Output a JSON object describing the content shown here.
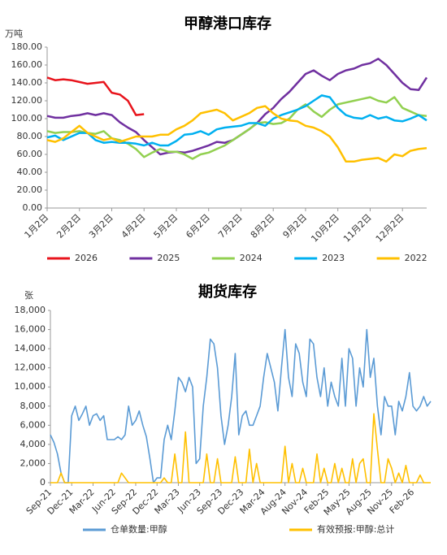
{
  "chart_data": [
    {
      "type": "line",
      "title": "甲醇港口库存",
      "y_label": "万吨",
      "categories": [
        "1月2日",
        null,
        null,
        null,
        "2月2日",
        null,
        null,
        null,
        "3月2日",
        null,
        null,
        null,
        "4月2日",
        null,
        null,
        null,
        "5月2日",
        null,
        null,
        null,
        "6月2日",
        null,
        null,
        null,
        "7月2日",
        null,
        null,
        null,
        "8月2日",
        null,
        null,
        null,
        "9月2日",
        null,
        null,
        null,
        "10月2日",
        null,
        null,
        null,
        "11月2日",
        null,
        null,
        null,
        "12月2日",
        null,
        null,
        null
      ],
      "ylim": [
        0,
        180
      ],
      "yticks": [
        {
          "value": 0,
          "label": "0.00"
        },
        {
          "value": 20,
          "label": "20.00"
        },
        {
          "value": 40,
          "label": "40.00"
        },
        {
          "value": 60,
          "label": "60.00"
        },
        {
          "value": 80,
          "label": "80.00"
        },
        {
          "value": 100,
          "label": "100.00"
        },
        {
          "value": 120,
          "label": "120.00"
        },
        {
          "value": 140,
          "label": "140.00"
        },
        {
          "value": 160,
          "label": "160.00"
        },
        {
          "value": 180,
          "label": "180.00"
        }
      ],
      "grid": false,
      "legend": "bottom",
      "series": [
        {
          "name": "2026",
          "color": "#e8141c",
          "values": [
            146,
            143,
            144,
            143,
            141,
            139,
            140,
            141,
            129,
            127,
            120,
            104,
            105,
            null,
            null,
            null,
            null,
            null,
            null,
            null,
            null,
            null,
            null,
            null,
            null,
            null,
            null,
            null,
            null,
            null,
            null,
            null,
            null,
            null,
            null,
            null,
            null,
            null,
            null,
            null,
            null,
            null,
            null,
            null,
            null,
            null,
            null,
            null
          ]
        },
        {
          "name": "2025",
          "color": "#7030a0",
          "values": [
            103,
            101,
            101,
            103,
            104,
            106,
            104,
            106,
            104,
            96,
            90,
            85,
            76,
            68,
            60,
            62,
            63,
            62,
            64,
            67,
            70,
            74,
            73,
            76,
            82,
            88,
            95,
            105,
            112,
            122,
            130,
            140,
            150,
            154,
            148,
            143,
            150,
            154,
            156,
            160,
            162,
            167,
            160,
            150,
            140,
            133,
            132,
            146
          ]
        },
        {
          "name": "2024",
          "color": "#92d050",
          "values": [
            86,
            84,
            85,
            85,
            86,
            84,
            83,
            86,
            78,
            76,
            72,
            66,
            57,
            62,
            66,
            63,
            63,
            60,
            55,
            60,
            62,
            66,
            70,
            76,
            82,
            88,
            95,
            96,
            94,
            95,
            100,
            110,
            116,
            108,
            102,
            110,
            116,
            118,
            120,
            122,
            124,
            120,
            118,
            124,
            112,
            108,
            104,
            103
          ]
        },
        {
          "name": "2023",
          "color": "#00b0f0",
          "values": [
            79,
            81,
            76,
            80,
            84,
            84,
            76,
            73,
            74,
            73,
            73,
            72,
            70,
            73,
            70,
            70,
            75,
            82,
            83,
            86,
            82,
            88,
            90,
            91,
            92,
            95,
            95,
            92,
            100,
            104,
            107,
            110,
            114,
            120,
            126,
            124,
            112,
            104,
            101,
            100,
            104,
            100,
            102,
            98,
            97,
            100,
            104,
            98
          ]
        },
        {
          "name": "2022",
          "color": "#ffc000",
          "values": [
            76,
            74,
            78,
            85,
            92,
            84,
            80,
            76,
            78,
            74,
            77,
            80,
            80,
            80,
            82,
            82,
            88,
            92,
            98,
            106,
            108,
            110,
            106,
            98,
            102,
            106,
            112,
            114,
            106,
            100,
            98,
            97,
            92,
            90,
            86,
            80,
            68,
            52,
            52,
            54,
            55,
            56,
            52,
            60,
            58,
            64,
            66,
            67
          ]
        }
      ]
    },
    {
      "type": "line",
      "title": "期货库存",
      "y_label": "张",
      "categories": [
        "Sep-21",
        null,
        null,
        null,
        null,
        null,
        "Dec-21",
        null,
        null,
        null,
        null,
        null,
        "Mar-22",
        null,
        null,
        null,
        null,
        null,
        "Jun-22",
        null,
        null,
        null,
        null,
        null,
        "Sep-22",
        null,
        null,
        null,
        null,
        null,
        "Dec-22",
        null,
        null,
        null,
        null,
        null,
        "Mar-23",
        null,
        null,
        null,
        null,
        null,
        "Jun-23",
        null,
        null,
        null,
        null,
        null,
        "Sep-23",
        null,
        null,
        null,
        null,
        null,
        "Dec-23",
        null,
        null,
        null,
        null,
        null,
        "Mar-24",
        null,
        null,
        null,
        null,
        null,
        "Aug-24",
        null,
        null,
        null,
        null,
        null,
        "Nov-24",
        null,
        null,
        null,
        null,
        null,
        "Feb-25",
        null,
        null,
        null,
        null,
        null,
        "May-25",
        null,
        null,
        null,
        null,
        null,
        "Aug-25",
        null,
        null,
        null,
        null,
        null,
        "Nov-25",
        null,
        null,
        null,
        null,
        null,
        "Feb-26",
        null,
        null,
        null,
        null,
        null
      ],
      "ylim": [
        0,
        18000
      ],
      "yticks": [
        0,
        {
          "value": 2000,
          "label": "2,000"
        },
        {
          "value": 4000,
          "label": "4,000"
        },
        {
          "value": 6000,
          "label": "6,000"
        },
        {
          "value": 8000,
          "label": "8,000"
        },
        {
          "value": 10000,
          "label": "10,000"
        },
        {
          "value": 12000,
          "label": "12,000"
        },
        {
          "value": 14000,
          "label": "14,000"
        },
        {
          "value": 16000,
          "label": "16,000"
        },
        {
          "value": 18000,
          "label": "18,000"
        }
      ],
      "grid": false,
      "legend": "bottom",
      "series": [
        {
          "name": "仓单数量:甲醇",
          "color": "#5b9bd5",
          "values": [
            5000,
            4200,
            3000,
            1000,
            0,
            0,
            7000,
            8000,
            6500,
            7200,
            8000,
            6000,
            7000,
            7200,
            6500,
            7000,
            4500,
            4500,
            4500,
            4800,
            4500,
            5000,
            8000,
            6000,
            6500,
            7500,
            6000,
            4800,
            2500,
            0,
            500,
            500,
            4500,
            6000,
            4500,
            7500,
            11000,
            10500,
            9500,
            11000,
            10000,
            2000,
            2500,
            8000,
            11000,
            15000,
            14500,
            12000,
            7000,
            4000,
            6000,
            9000,
            13500,
            5000,
            7000,
            7500,
            6000,
            6000,
            7000,
            8000,
            11000,
            13500,
            12000,
            10500,
            7500,
            12000,
            16000,
            11000,
            9000,
            14500,
            13500,
            10500,
            9000,
            15000,
            14500,
            11000,
            9000,
            12000,
            8000,
            10500,
            9000,
            8000,
            13000,
            8000,
            14000,
            13000,
            8000,
            12000,
            10000,
            16000,
            11000,
            13000,
            8000,
            5000,
            9000,
            8000,
            8000,
            5000,
            8500,
            7500,
            9000,
            11500,
            8000,
            7500,
            8000,
            9000,
            8000,
            8500
          ]
        },
        {
          "name": "有效预报:甲醇:总计",
          "color": "#ffc000",
          "values": [
            0,
            0,
            0,
            1000,
            0,
            0,
            0,
            0,
            0,
            0,
            0,
            0,
            0,
            0,
            0,
            0,
            0,
            0,
            0,
            0,
            1000,
            500,
            0,
            0,
            0,
            0,
            0,
            0,
            0,
            0,
            0,
            0,
            500,
            0,
            0,
            3000,
            0,
            0,
            5300,
            0,
            0,
            0,
            0,
            0,
            3000,
            0,
            0,
            2500,
            0,
            0,
            0,
            0,
            2700,
            0,
            0,
            0,
            3500,
            0,
            2000,
            0,
            0,
            0,
            0,
            0,
            0,
            0,
            3800,
            0,
            2000,
            0,
            0,
            1500,
            0,
            0,
            0,
            3000,
            0,
            1500,
            0,
            0,
            2000,
            0,
            1500,
            0,
            0,
            2500,
            0,
            2000,
            2500,
            0,
            0,
            7200,
            3500,
            0,
            0,
            2500,
            1500,
            0,
            1000,
            0,
            1800,
            0,
            0,
            0,
            800,
            0,
            0,
            0
          ]
        }
      ]
    }
  ]
}
